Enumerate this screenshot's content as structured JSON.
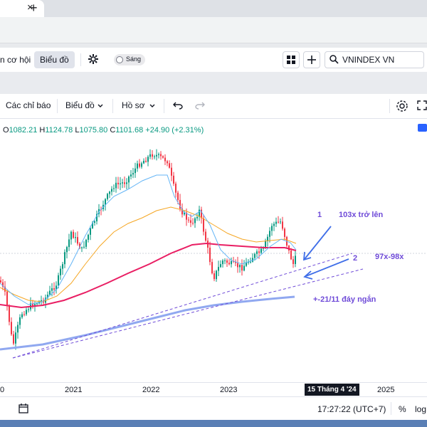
{
  "browser": {
    "new_tab_glyph": "+",
    "close_glyph": "×"
  },
  "topbar": {
    "fundamentals_label": "n cơ hội",
    "chart_label": "Biểu đồ",
    "theme_toggle_label": "Sáng",
    "symbol": "VNINDEX VN"
  },
  "toolbar": {
    "indicators_label": "Các chỉ báo",
    "chart_type_label": "Biểu đồ",
    "profile_label": "Hồ sơ"
  },
  "ohlc": {
    "o_label": "O",
    "o": "1082.21",
    "h_label": "H",
    "h": "1124.78",
    "l_label": "L",
    "l": "1075.80",
    "c_label": "C",
    "c": "1101.68",
    "change": "+24.90 (+2.31%)"
  },
  "annotations": {
    "n1": "1",
    "t1": "103x trở lên",
    "n2": "2",
    "t2": "97x-98x",
    "t3": "+-21/11 đáy ngắn"
  },
  "xaxis": {
    "labels": [
      "0",
      "2021",
      "2022",
      "2023",
      "2025"
    ],
    "crosshair_date": "15 Tháng 4 '24"
  },
  "status": {
    "time": "17:27:22 (UTC+7)",
    "percent_label": "%",
    "log_label": "log"
  },
  "colors": {
    "up": "#089981",
    "down": "#f23645",
    "ma_short": "#64b5f6",
    "ma_mid": "#f5a623",
    "ma_long": "#e91e63",
    "ma_very_long": "#90a8f0",
    "annotation": "#6f4bd8",
    "trendline": "#6f4bd8"
  },
  "icons": [
    "gear-icon",
    "layout-icon",
    "plus-icon",
    "search-icon",
    "undo-icon",
    "redo-icon",
    "settings-icon",
    "fullscreen-icon",
    "calendar-icon"
  ]
}
